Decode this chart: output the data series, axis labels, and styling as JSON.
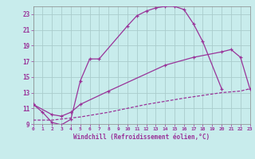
{
  "xlabel": "Windchill (Refroidissement éolien,°C)",
  "bg_color": "#c8ecec",
  "grid_color": "#aacccc",
  "line_color": "#993399",
  "xlim": [
    0,
    23
  ],
  "ylim": [
    9,
    24
  ],
  "yticks": [
    9,
    11,
    13,
    15,
    17,
    19,
    21,
    23
  ],
  "xticks": [
    0,
    1,
    2,
    3,
    4,
    5,
    6,
    7,
    8,
    9,
    10,
    11,
    12,
    13,
    14,
    15,
    16,
    17,
    18,
    19,
    20,
    21,
    22,
    23
  ],
  "curve1_x": [
    0,
    1,
    2,
    3,
    4,
    5,
    6,
    7,
    10,
    11,
    12,
    13,
    14,
    15,
    16,
    17,
    18,
    20
  ],
  "curve1_y": [
    11.5,
    10.5,
    9.2,
    8.9,
    9.6,
    14.5,
    17.3,
    17.3,
    21.5,
    22.8,
    23.4,
    23.8,
    24.0,
    24.0,
    23.6,
    21.8,
    19.5,
    13.5
  ],
  "curve2_x": [
    0,
    2,
    3,
    4,
    5,
    8,
    14,
    17,
    20,
    21,
    22,
    23
  ],
  "curve2_y": [
    11.5,
    10.2,
    10.0,
    10.5,
    11.5,
    13.2,
    16.5,
    17.5,
    18.2,
    18.5,
    17.5,
    13.5
  ],
  "curve3_x": [
    0,
    2,
    5,
    8,
    12,
    16,
    20,
    22,
    23
  ],
  "curve3_y": [
    9.5,
    9.5,
    9.9,
    10.5,
    11.5,
    12.3,
    13.0,
    13.2,
    13.5
  ]
}
